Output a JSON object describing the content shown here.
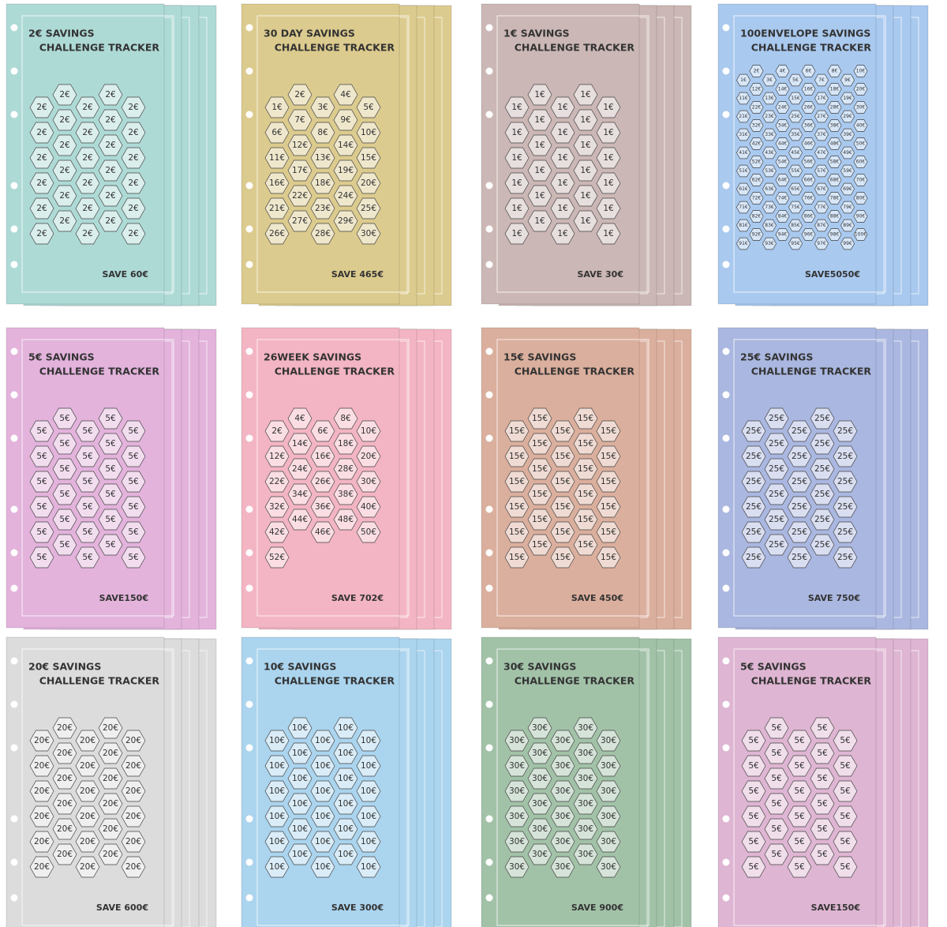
{
  "cards": [
    {
      "title": [
        "2€ SAVINGS",
        "CHALLENGE TRACKER"
      ],
      "save": "SAVE 60€",
      "color": "#aedad6",
      "cells": [
        "2€",
        "2€",
        "2€",
        "2€",
        "2€",
        "2€",
        "2€",
        "2€",
        "2€",
        "2€",
        "2€",
        "2€",
        "2€",
        "2€",
        "2€",
        "2€",
        "2€",
        "2€",
        "2€",
        "2€",
        "2€",
        "2€",
        "2€",
        "2€",
        "2€",
        "2€",
        "2€",
        "2€",
        "2€",
        "2€"
      ]
    },
    {
      "title": [
        "30 DAY SAVINGS",
        "CHALLENGE TRACKER"
      ],
      "save": "SAVE 465€",
      "color": "#dccb8e",
      "cells": [
        "1€",
        "2€",
        "3€",
        "4€",
        "5€",
        "6€",
        "7€",
        "8€",
        "9€",
        "10€",
        "11€",
        "12€",
        "13€",
        "14€",
        "15€",
        "16€",
        "17€",
        "18€",
        "19€",
        "20€",
        "21€",
        "22€",
        "23€",
        "24€",
        "25€",
        "26€",
        "27€",
        "28€",
        "29€",
        "30€"
      ]
    },
    {
      "title": [
        "1€ SAVINGS",
        "CHALLENGE TRACKER"
      ],
      "save": "SAVE 30€",
      "color": "#cbb7b5",
      "cells": [
        "1€",
        "1€",
        "1€",
        "1€",
        "1€",
        "1€",
        "1€",
        "1€",
        "1€",
        "1€",
        "1€",
        "1€",
        "1€",
        "1€",
        "1€",
        "1€",
        "1€",
        "1€",
        "1€",
        "1€",
        "1€",
        "1€",
        "1€",
        "1€",
        "1€",
        "1€",
        "1€",
        "1€",
        "1€",
        "1€"
      ]
    },
    {
      "title": [
        "100ENVELOPE SAVINGS",
        "CHALLENGE TRACKER"
      ],
      "save": "SAVE5050€",
      "color": "#a9c9ef",
      "cells": [
        "1€",
        "2€",
        "3€",
        "4€",
        "5€",
        "6€",
        "7€",
        "8€",
        "9€",
        "10€",
        "11€",
        "12€",
        "13€",
        "14€",
        "15€",
        "16€",
        "17€",
        "18€",
        "19€",
        "20€",
        "21€",
        "22€",
        "23€",
        "24€",
        "25€",
        "26€",
        "27€",
        "28€",
        "29€",
        "30€",
        "31€",
        "32€",
        "33€",
        "34€",
        "35€",
        "36€",
        "37€",
        "38€",
        "39€",
        "40€",
        "41€",
        "42€",
        "43€",
        "44€",
        "45€",
        "46€",
        "47€",
        "48€",
        "49€",
        "50€",
        "51€",
        "52€",
        "53€",
        "54€",
        "55€",
        "56€",
        "57€",
        "58€",
        "59€",
        "60€",
        "61€",
        "62€",
        "63€",
        "64€",
        "65€",
        "66€",
        "67€",
        "68€",
        "69€",
        "70€",
        "71€",
        "72€",
        "73€",
        "74€",
        "75€",
        "76€",
        "77€",
        "78€",
        "79€",
        "80€",
        "81€",
        "82€",
        "83€",
        "84€",
        "85€",
        "86€",
        "87€",
        "88€",
        "89€",
        "90€",
        "91€",
        "92€",
        "93€",
        "94€",
        "95€",
        "96€",
        "97€",
        "98€",
        "99€",
        "100€"
      ]
    },
    {
      "title": [
        "5€ SAVINGS",
        "CHALLENGE TRACKER"
      ],
      "save": "SAVE150€",
      "color": "#e3b3dc",
      "cells": [
        "5€",
        "5€",
        "5€",
        "5€",
        "5€",
        "5€",
        "5€",
        "5€",
        "5€",
        "5€",
        "5€",
        "5€",
        "5€",
        "5€",
        "5€",
        "5€",
        "5€",
        "5€",
        "5€",
        "5€",
        "5€",
        "5€",
        "5€",
        "5€",
        "5€",
        "5€",
        "5€",
        "5€",
        "5€",
        "5€"
      ]
    },
    {
      "title": [
        "26WEEK SAVINGS",
        "CHALLENGE TRACKER"
      ],
      "save": "SAVE 702€",
      "color": "#f3b5c3",
      "cells": [
        "2€",
        "4€",
        "6€",
        "8€",
        "10€",
        "12€",
        "14€",
        "16€",
        "18€",
        "20€",
        "22€",
        "24€",
        "26€",
        "28€",
        "30€",
        "32€",
        "34€",
        "36€",
        "38€",
        "40€",
        "42€",
        "44€",
        "46€",
        "48€",
        "50€",
        "52€"
      ]
    },
    {
      "title": [
        "15€ SAVINGS",
        "CHALLENGE TRACKER"
      ],
      "save": "SAVE 450€",
      "color": "#dbaf9d",
      "cells": [
        "15€",
        "15€",
        "15€",
        "15€",
        "15€",
        "15€",
        "15€",
        "15€",
        "15€",
        "15€",
        "15€",
        "15€",
        "15€",
        "15€",
        "15€",
        "15€",
        "15€",
        "15€",
        "15€",
        "15€",
        "15€",
        "15€",
        "15€",
        "15€",
        "15€",
        "15€",
        "15€",
        "15€",
        "15€",
        "15€"
      ]
    },
    {
      "title": [
        "25€ SAVINGS",
        "CHALLENGE TRACKER"
      ],
      "save": "SAVE 750€",
      "color": "#aab7e0",
      "cells": [
        "25€",
        "25€",
        "25€",
        "25€",
        "25€",
        "25€",
        "25€",
        "25€",
        "25€",
        "25€",
        "25€",
        "25€",
        "25€",
        "25€",
        "25€",
        "25€",
        "25€",
        "25€",
        "25€",
        "25€",
        "25€",
        "25€",
        "25€",
        "25€",
        "25€",
        "25€",
        "25€",
        "25€",
        "25€",
        "25€"
      ]
    },
    {
      "title": [
        "20€ SAVINGS",
        "CHALLENGE TRACKER"
      ],
      "save": "SAVE 600€",
      "color": "#dcdcdc",
      "cells": [
        "20€",
        "20€",
        "20€",
        "20€",
        "20€",
        "20€",
        "20€",
        "20€",
        "20€",
        "20€",
        "20€",
        "20€",
        "20€",
        "20€",
        "20€",
        "20€",
        "20€",
        "20€",
        "20€",
        "20€",
        "20€",
        "20€",
        "20€",
        "20€",
        "20€",
        "20€",
        "20€",
        "20€",
        "20€",
        "20€"
      ]
    },
    {
      "title": [
        "10€ SAVINGS",
        "CHALLENGE TRACKER"
      ],
      "save": "SAVE 300€",
      "color": "#abd4ee",
      "cells": [
        "10€",
        "10€",
        "10€",
        "10€",
        "10€",
        "10€",
        "10€",
        "10€",
        "10€",
        "10€",
        "10€",
        "10€",
        "10€",
        "10€",
        "10€",
        "10€",
        "10€",
        "10€",
        "10€",
        "10€",
        "10€",
        "10€",
        "10€",
        "10€",
        "10€",
        "10€",
        "10€",
        "10€",
        "10€",
        "10€"
      ]
    },
    {
      "title": [
        "30€ SAVINGS",
        "CHALLENGE TRACKER"
      ],
      "save": "SAVE 900€",
      "color": "#a2c2a8",
      "cells": [
        "30€",
        "30€",
        "30€",
        "30€",
        "30€",
        "30€",
        "30€",
        "30€",
        "30€",
        "30€",
        "30€",
        "30€",
        "30€",
        "30€",
        "30€",
        "30€",
        "30€",
        "30€",
        "30€",
        "30€",
        "30€",
        "30€",
        "30€",
        "30€",
        "30€",
        "30€",
        "30€",
        "30€",
        "30€",
        "30€"
      ]
    },
    {
      "title": [
        "5€ SAVINGS",
        "CHALLENGE TRACKER"
      ],
      "save": "SAVE150€",
      "color": "#deb5d2",
      "cells": [
        "5€",
        "5€",
        "5€",
        "5€",
        "5€",
        "5€",
        "5€",
        "5€",
        "5€",
        "5€",
        "5€",
        "5€",
        "5€",
        "5€",
        "5€",
        "5€",
        "5€",
        "5€",
        "5€",
        "5€",
        "5€",
        "5€",
        "5€",
        "5€",
        "5€",
        "5€",
        "5€",
        "5€",
        "5€",
        "5€"
      ]
    }
  ]
}
